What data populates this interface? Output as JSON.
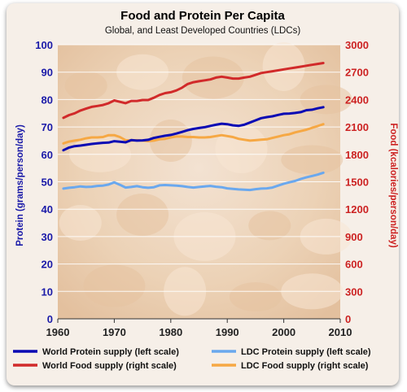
{
  "chart_data": {
    "type": "line",
    "title": "Food and Protein Per Capita",
    "subtitle": "Global, and Least Developed Countries (LDCs)",
    "xlabel": "",
    "ylabel_left": "Protein (grams/person/day)",
    "ylabel_right": "Food (kcalories/person/day)",
    "xlim": [
      1960,
      2010
    ],
    "ylim_left": [
      0,
      100
    ],
    "ylim_right": [
      0,
      3000
    ],
    "x_ticks": [
      "1960",
      "1970",
      "1980",
      "1990",
      "2000",
      "2010"
    ],
    "y_ticks_left": [
      "0",
      "10",
      "20",
      "30",
      "40",
      "50",
      "60",
      "70",
      "80",
      "90",
      "100"
    ],
    "y_ticks_right": [
      "0",
      "300",
      "600",
      "900",
      "1200",
      "1500",
      "1800",
      "2100",
      "2400",
      "2700",
      "3000"
    ],
    "grid": "horizontal",
    "legend_position": "bottom",
    "x": [
      1961,
      1962,
      1963,
      1964,
      1965,
      1966,
      1967,
      1968,
      1969,
      1970,
      1971,
      1972,
      1973,
      1974,
      1975,
      1976,
      1977,
      1978,
      1979,
      1980,
      1981,
      1982,
      1983,
      1984,
      1985,
      1986,
      1987,
      1988,
      1989,
      1990,
      1991,
      1992,
      1993,
      1994,
      1995,
      1996,
      1997,
      1998,
      1999,
      2000,
      2001,
      2002,
      2003,
      2004,
      2005,
      2006,
      2007
    ],
    "series": [
      {
        "name": "World Protein supply (left scale)",
        "axis": "left",
        "color": "#0a0ab4",
        "values": [
          61.5,
          62.5,
          63,
          63.2,
          63.5,
          63.8,
          64,
          64.2,
          64.3,
          64.8,
          64.6,
          64.4,
          65.2,
          65,
          65.1,
          65.3,
          66,
          66.4,
          66.8,
          67.1,
          67.6,
          68.2,
          68.8,
          69.3,
          69.6,
          69.9,
          70.4,
          70.8,
          71.2,
          71,
          70.6,
          70.4,
          70.8,
          71.6,
          72.4,
          73.2,
          73.6,
          73.9,
          74.4,
          74.8,
          74.9,
          75.1,
          75.4,
          76.1,
          76.3,
          76.8,
          77.2
        ]
      },
      {
        "name": "LDC Protein supply (left scale)",
        "axis": "left",
        "color": "#6aa8ee",
        "values": [
          47.5,
          47.8,
          48,
          48.3,
          48.1,
          48.2,
          48.5,
          48.6,
          49,
          49.8,
          48.9,
          47.9,
          48.1,
          48.4,
          48.0,
          47.8,
          48.0,
          48.7,
          48.8,
          48.7,
          48.6,
          48.4,
          48.1,
          47.9,
          48.1,
          48.3,
          48.5,
          48.2,
          48.0,
          47.6,
          47.4,
          47.2,
          47.1,
          47.0,
          47.3,
          47.5,
          47.6,
          47.9,
          48.6,
          49.3,
          49.8,
          50.3,
          51.0,
          51.6,
          52.1,
          52.6,
          53.3
        ]
      },
      {
        "name": "World Food supply (right scale)",
        "axis": "right",
        "color": "#d12a2a",
        "values": [
          2200,
          2230,
          2250,
          2280,
          2300,
          2320,
          2330,
          2340,
          2360,
          2390,
          2375,
          2360,
          2385,
          2385,
          2395,
          2395,
          2420,
          2450,
          2470,
          2480,
          2500,
          2530,
          2570,
          2590,
          2600,
          2610,
          2620,
          2640,
          2650,
          2640,
          2630,
          2630,
          2640,
          2650,
          2670,
          2690,
          2700,
          2710,
          2720,
          2730,
          2740,
          2750,
          2760,
          2770,
          2780,
          2790,
          2800
        ]
      },
      {
        "name": "LDC Food supply (right scale)",
        "axis": "right",
        "color": "#f6a844",
        "values": [
          1920,
          1940,
          1950,
          1960,
          1975,
          1985,
          1985,
          1990,
          2010,
          2010,
          1990,
          1955,
          1950,
          1955,
          1950,
          1945,
          1950,
          1965,
          1970,
          1985,
          1995,
          1995,
          1990,
          1990,
          1985,
          1985,
          1990,
          2000,
          2010,
          2000,
          1990,
          1970,
          1960,
          1950,
          1955,
          1960,
          1965,
          1980,
          1995,
          2010,
          2020,
          2040,
          2055,
          2070,
          2090,
          2110,
          2130
        ]
      }
    ]
  }
}
